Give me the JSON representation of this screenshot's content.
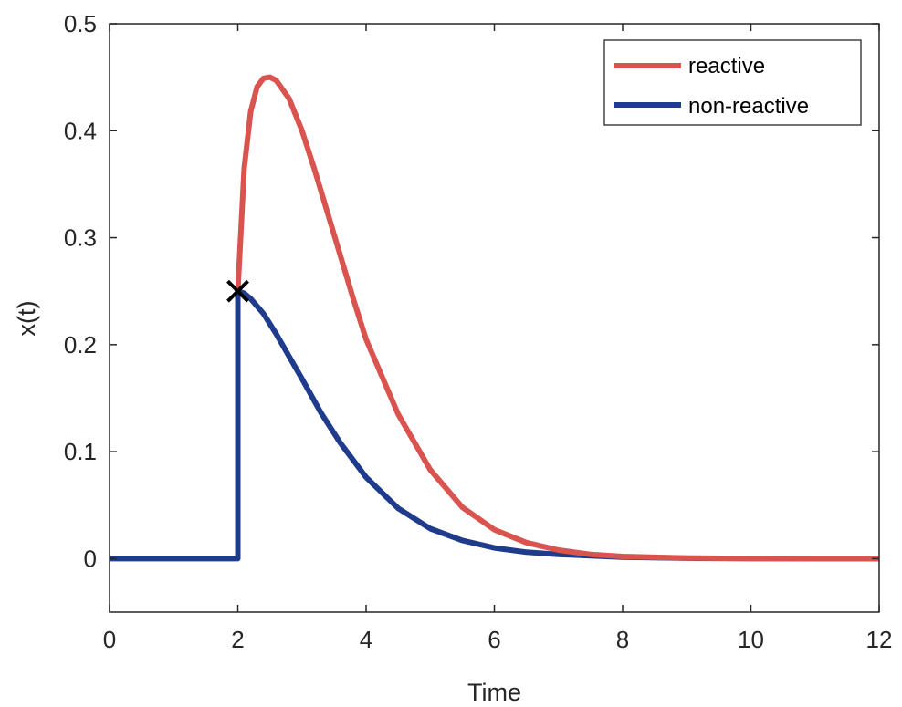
{
  "chart_data": {
    "type": "line",
    "xlabel": "Time",
    "ylabel": "x(t)",
    "xlim": [
      0,
      12
    ],
    "ylim": [
      -0.05,
      0.5
    ],
    "x_ticks": [
      0,
      2,
      4,
      6,
      8,
      10,
      12
    ],
    "y_ticks": [
      0,
      0.1,
      0.2,
      0.3,
      0.4,
      0.5
    ],
    "x_tick_labels": [
      "0",
      "2",
      "4",
      "6",
      "8",
      "10",
      "12"
    ],
    "y_tick_labels": [
      "0",
      "0.1",
      "0.2",
      "0.3",
      "0.4",
      "0.5"
    ],
    "grid": false,
    "legend_position": "top-right",
    "marker": {
      "symbol": "x",
      "x": 2,
      "y": 0.25,
      "color": "#000000"
    },
    "series": [
      {
        "name": "reactive",
        "color": "#d9534f",
        "x": [
          2.0,
          2.1,
          2.2,
          2.3,
          2.4,
          2.5,
          2.6,
          2.8,
          3.0,
          3.2,
          3.4,
          3.6,
          3.8,
          4.0,
          4.5,
          5.0,
          5.5,
          6.0,
          6.5,
          7.0,
          7.5,
          8.0,
          9.0,
          10.0,
          11.0,
          12.0
        ],
        "y": [
          0.25,
          0.365,
          0.418,
          0.441,
          0.449,
          0.45,
          0.447,
          0.43,
          0.4,
          0.363,
          0.323,
          0.283,
          0.243,
          0.205,
          0.135,
          0.083,
          0.048,
          0.027,
          0.015,
          0.008,
          0.004,
          0.002,
          0.0006,
          0.0001,
          0.0,
          0.0
        ]
      },
      {
        "name": "non-reactive",
        "color": "#1f3b8c",
        "x": [
          0,
          2.0,
          2.0,
          2.1,
          2.2,
          2.4,
          2.6,
          2.8,
          3.0,
          3.3,
          3.6,
          4.0,
          4.5,
          5.0,
          5.5,
          6.0,
          6.5,
          7.0,
          8.0,
          9.0,
          10.0,
          11.0,
          12.0
        ],
        "y": [
          0,
          0,
          0.25,
          0.248,
          0.243,
          0.229,
          0.21,
          0.189,
          0.168,
          0.136,
          0.108,
          0.076,
          0.047,
          0.028,
          0.017,
          0.01,
          0.006,
          0.004,
          0.0013,
          0.0004,
          0.0001,
          0.0,
          0.0
        ]
      }
    ]
  }
}
